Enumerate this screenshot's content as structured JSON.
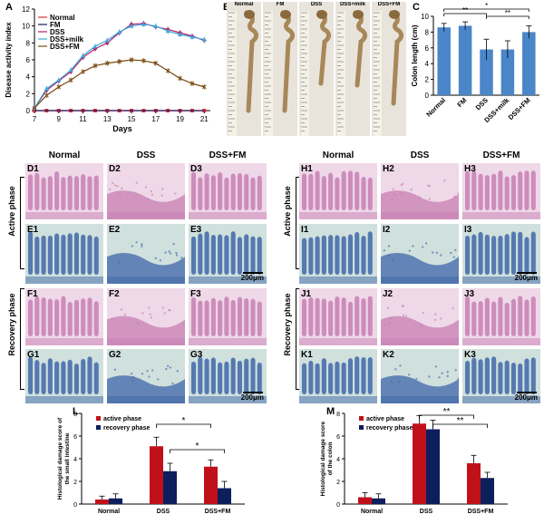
{
  "panels": {
    "A": "A",
    "B": "B",
    "C": "C",
    "L": "L",
    "M": "M"
  },
  "photos": {
    "labels": [
      "Normal",
      "FM",
      "DSS",
      "DSS+milk",
      "DSS+FM"
    ]
  },
  "histology": {
    "left_headers": [
      "Normal",
      "DSS",
      "DSS+FM"
    ],
    "right_headers": [
      "Normal",
      "DSS",
      "DSS+FM"
    ],
    "left_rows": [
      [
        "D1",
        "D2",
        "D3"
      ],
      [
        "E1",
        "E2",
        "E3"
      ],
      [
        "F1",
        "F2",
        "F3"
      ],
      [
        "G1",
        "G2",
        "G3"
      ]
    ],
    "right_rows": [
      [
        "H1",
        "H2",
        "H3"
      ],
      [
        "I1",
        "I2",
        "I3"
      ],
      [
        "J1",
        "J2",
        "J3"
      ],
      [
        "K1",
        "K2",
        "K3"
      ]
    ],
    "phase_active": "Active phase",
    "phase_recovery": "Recovery phase",
    "scale_bar": "200μm",
    "colors": {
      "he_pink": "#c77fb3",
      "he_bg": "#efd8e8",
      "ab_blue": "#3f66a8",
      "ab_bg": "#cfe0dd"
    }
  },
  "chart_data": [
    {
      "panel": "A",
      "type": "line",
      "xlabel": "Days",
      "ylabel": "Disease activity index",
      "x": [
        7,
        8,
        9,
        10,
        11,
        12,
        13,
        14,
        15,
        16,
        17,
        18,
        19,
        20,
        21
      ],
      "xticks": [
        7,
        9,
        11,
        13,
        15,
        17,
        19,
        21
      ],
      "yticks": [
        0,
        2,
        4,
        6,
        8,
        10,
        12
      ],
      "ylim": [
        0,
        12
      ],
      "legend_position": "top-left",
      "series": [
        {
          "name": "Normal",
          "color": "#e2303a",
          "marker": "square",
          "values": [
            0,
            0,
            0,
            0,
            0,
            0,
            0,
            0,
            0,
            0,
            0,
            0,
            0,
            0,
            0
          ]
        },
        {
          "name": "FM",
          "color": "#1a1a5a",
          "marker": "line",
          "values": [
            0,
            0,
            0,
            0,
            0,
            0,
            0,
            0,
            0,
            0,
            0,
            0,
            0,
            0,
            0
          ]
        },
        {
          "name": "DSS",
          "color": "#b0236b",
          "marker": "diamond",
          "values": [
            0.3,
            2.4,
            3.5,
            4.6,
            6.3,
            7.3,
            8.0,
            9.2,
            10.2,
            10.3,
            9.9,
            9.6,
            9.2,
            8.8,
            8.3
          ]
        },
        {
          "name": "DSS+milk",
          "color": "#3fa8d8",
          "marker": "triangle",
          "values": [
            0.3,
            2.6,
            3.6,
            4.8,
            6.5,
            7.6,
            8.3,
            9.3,
            10.0,
            10.2,
            10.0,
            9.4,
            9.0,
            8.7,
            8.4
          ]
        },
        {
          "name": "DSS+FM",
          "color": "#7a4a10",
          "marker": "x",
          "values": [
            0.3,
            1.8,
            2.8,
            3.6,
            4.6,
            5.3,
            5.6,
            5.8,
            6.0,
            5.9,
            5.6,
            4.7,
            3.8,
            3.2,
            2.8
          ]
        }
      ]
    },
    {
      "panel": "C",
      "type": "bar",
      "ylabel": "Colon length (cm)",
      "categories": [
        "Normal",
        "FM",
        "DSS",
        "DSS+milk",
        "DSS+FM"
      ],
      "values": [
        8.6,
        8.8,
        5.8,
        5.8,
        8.0
      ],
      "errors": [
        0.5,
        0.5,
        1.3,
        1.1,
        0.8
      ],
      "ylim": [
        0,
        10
      ],
      "yticks": [
        0,
        2,
        4,
        6,
        8,
        10
      ],
      "color": "#4a86c8",
      "significance": [
        "**",
        "*",
        "**"
      ]
    },
    {
      "panel": "L",
      "type": "bar",
      "ylabel": "Histological damage score of the small intestine",
      "categories": [
        "Normal",
        "DSS",
        "DSS+FM"
      ],
      "series": [
        {
          "name": "active phase",
          "color": "#c0111b",
          "values": [
            0.4,
            5.1,
            3.3
          ],
          "errors": [
            0.3,
            0.8,
            0.6
          ]
        },
        {
          "name": "recovery phase",
          "color": "#0d1e5c",
          "values": [
            0.5,
            2.9,
            1.4
          ],
          "errors": [
            0.4,
            0.7,
            0.6
          ]
        }
      ],
      "ylim": [
        0,
        8
      ],
      "yticks": [
        0,
        2,
        4,
        6,
        8
      ],
      "legend_position": "top-left",
      "significance": [
        "*",
        "*"
      ]
    },
    {
      "panel": "M",
      "type": "bar",
      "ylabel": "Histological damage score of the colon",
      "categories": [
        "Normal",
        "DSS",
        "DSS+FM"
      ],
      "series": [
        {
          "name": "active phase",
          "color": "#c0111b",
          "values": [
            0.6,
            7.1,
            3.6
          ],
          "errors": [
            0.4,
            0.7,
            0.7
          ]
        },
        {
          "name": "recovery phase",
          "color": "#0d1e5c",
          "values": [
            0.5,
            6.6,
            2.3
          ],
          "errors": [
            0.4,
            0.8,
            0.5
          ]
        }
      ],
      "ylim": [
        0,
        8
      ],
      "yticks": [
        0,
        2,
        4,
        6,
        8
      ],
      "legend_position": "top-left",
      "significance": [
        "**",
        "**"
      ]
    }
  ]
}
